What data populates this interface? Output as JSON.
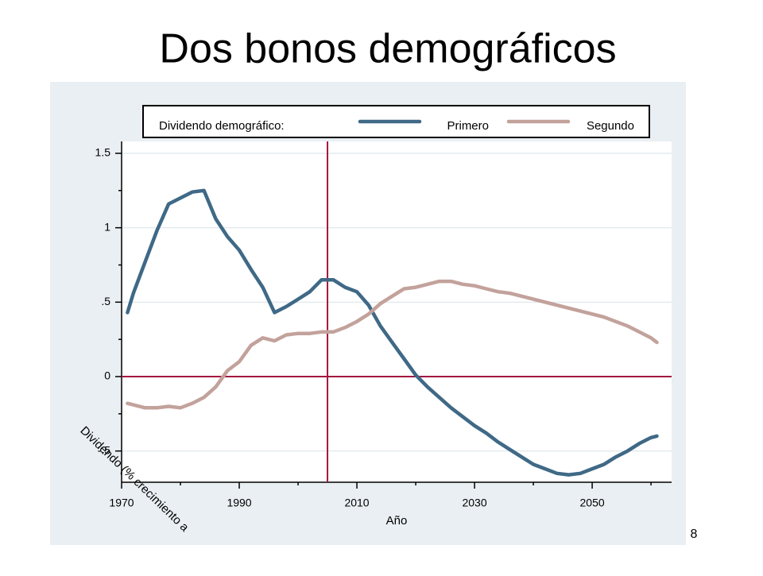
{
  "title": "Dos bonos demográficos",
  "page_number": "8",
  "chart_data": {
    "type": "line",
    "legend_title": "Dividendo demográfico:",
    "x_label": "Año",
    "y_label": "Dividendo (% crecimiento a",
    "x": [
      1971,
      1972,
      1974,
      1976,
      1978,
      1980,
      1982,
      1984,
      1986,
      1988,
      1990,
      1992,
      1994,
      1996,
      1998,
      2000,
      2002,
      2004,
      2006,
      2008,
      2010,
      2012,
      2014,
      2016,
      2018,
      2020,
      2022,
      2024,
      2026,
      2028,
      2030,
      2032,
      2034,
      2036,
      2038,
      2040,
      2042,
      2044,
      2046,
      2048,
      2050,
      2052,
      2054,
      2056,
      2058,
      2060,
      2061
    ],
    "series": [
      {
        "name": "Primero",
        "color": "#3f6986",
        "values": [
          0.43,
          0.56,
          0.77,
          0.98,
          1.16,
          1.2,
          1.24,
          1.25,
          1.06,
          0.94,
          0.85,
          0.72,
          0.6,
          0.43,
          0.47,
          0.52,
          0.57,
          0.65,
          0.65,
          0.6,
          0.57,
          0.48,
          0.34,
          0.23,
          0.12,
          0.01,
          -0.07,
          -0.14,
          -0.21,
          -0.27,
          -0.33,
          -0.38,
          -0.44,
          -0.49,
          -0.54,
          -0.59,
          -0.62,
          -0.65,
          -0.66,
          -0.65,
          -0.62,
          -0.59,
          -0.54,
          -0.5,
          -0.45,
          -0.41,
          -0.4
        ]
      },
      {
        "name": "Segundo",
        "color": "#c3a29c",
        "values": [
          -0.18,
          -0.19,
          -0.21,
          -0.21,
          -0.2,
          -0.21,
          -0.18,
          -0.14,
          -0.07,
          0.04,
          0.1,
          0.21,
          0.26,
          0.24,
          0.28,
          0.29,
          0.29,
          0.3,
          0.3,
          0.33,
          0.37,
          0.42,
          0.49,
          0.54,
          0.59,
          0.6,
          0.62,
          0.64,
          0.64,
          0.62,
          0.61,
          0.59,
          0.57,
          0.56,
          0.54,
          0.52,
          0.5,
          0.48,
          0.46,
          0.44,
          0.42,
          0.4,
          0.37,
          0.34,
          0.3,
          0.26,
          0.23
        ]
      }
    ],
    "xlim": [
      1970,
      2063.5
    ],
    "ylim": [
      -0.71,
      1.58
    ],
    "xticks": [
      1970,
      1990,
      2010,
      2030,
      2050
    ],
    "xminor": [
      1980,
      2000,
      2020,
      2040,
      2060
    ],
    "yticks": [
      {
        "value": -0.5,
        "label": "-.5"
      },
      0,
      {
        "value": 0.5,
        "label": ".5"
      },
      1,
      1.5
    ],
    "yminor": [
      -0.25,
      0.25,
      0.75,
      1.25
    ],
    "grid": true,
    "reference_lines": {
      "x": 2005,
      "y": 0,
      "color": "#a3173f"
    },
    "legend": "top"
  }
}
